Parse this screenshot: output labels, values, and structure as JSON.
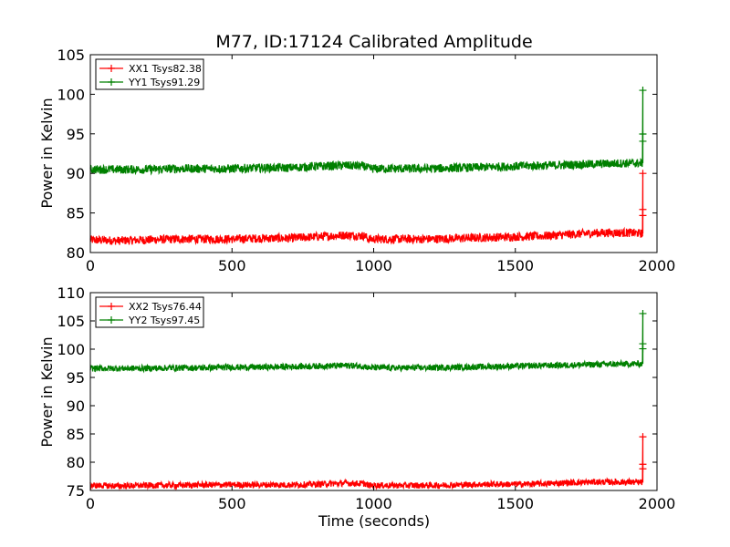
{
  "chart_data": [
    {
      "type": "line",
      "title": "M77, ID:17124 Calibrated Amplitude",
      "xlabel": "",
      "ylabel": "Power in Kelvin",
      "xlim": [
        0,
        2000
      ],
      "ylim": [
        80,
        105
      ],
      "xticks": [
        "0",
        "500",
        "1000",
        "1500",
        "2000"
      ],
      "yticks": [
        "80",
        "85",
        "90",
        "95",
        "100",
        "105"
      ],
      "legend_position": "top-left",
      "grid": false,
      "series": [
        {
          "name": "XX1 Tsys82.38",
          "color": "#ff0000",
          "x": [
            0,
            100,
            200,
            300,
            400,
            500,
            600,
            700,
            800,
            900,
            970,
            980,
            1100,
            1200,
            1300,
            1400,
            1500,
            1600,
            1700,
            1800,
            1900,
            1950
          ],
          "y": [
            81.6,
            81.5,
            81.6,
            81.7,
            81.7,
            81.7,
            81.8,
            81.8,
            82.0,
            82.2,
            82.1,
            81.7,
            81.7,
            81.7,
            81.8,
            81.9,
            82.0,
            82.1,
            82.3,
            82.5,
            82.5,
            82.4
          ],
          "spike": {
            "x": 1950,
            "y_min": 82.4,
            "y_max": 90.0
          }
        },
        {
          "name": "YY1 Tsys91.29",
          "color": "#008000",
          "x": [
            0,
            100,
            200,
            300,
            400,
            500,
            600,
            700,
            800,
            900,
            970,
            980,
            1100,
            1200,
            1300,
            1400,
            1500,
            1600,
            1700,
            1800,
            1900,
            1950
          ],
          "y": [
            90.5,
            90.5,
            90.5,
            90.6,
            90.6,
            90.6,
            90.7,
            90.7,
            90.9,
            91.0,
            90.9,
            90.6,
            90.6,
            90.6,
            90.7,
            90.8,
            90.9,
            91.0,
            91.1,
            91.2,
            91.3,
            91.3
          ],
          "spike": {
            "x": 1950,
            "y_min": 91.3,
            "y_max": 100.5
          }
        }
      ]
    },
    {
      "type": "line",
      "title": "",
      "xlabel": "Time (seconds)",
      "ylabel": "Power in Kelvin",
      "xlim": [
        0,
        2000
      ],
      "ylim": [
        75,
        110
      ],
      "xticks": [
        "0",
        "500",
        "1000",
        "1500",
        "2000"
      ],
      "yticks": [
        "75",
        "80",
        "85",
        "90",
        "95",
        "100",
        "105",
        "110"
      ],
      "legend_position": "top-left",
      "grid": false,
      "series": [
        {
          "name": "XX2 Tsys76.44",
          "color": "#ff0000",
          "x": [
            0,
            100,
            200,
            300,
            400,
            500,
            600,
            700,
            800,
            900,
            970,
            980,
            1100,
            1200,
            1300,
            1400,
            1500,
            1600,
            1700,
            1800,
            1900,
            1950
          ],
          "y": [
            75.9,
            75.8,
            75.9,
            75.9,
            76.0,
            76.0,
            76.0,
            76.0,
            76.1,
            76.3,
            76.2,
            75.9,
            75.9,
            75.9,
            76.0,
            76.1,
            76.1,
            76.2,
            76.4,
            76.5,
            76.5,
            76.4
          ],
          "spike": {
            "x": 1950,
            "y_min": 76.4,
            "y_max": 84.5
          }
        },
        {
          "name": "YY2 Tsys97.45",
          "color": "#008000",
          "x": [
            0,
            100,
            200,
            300,
            400,
            500,
            600,
            700,
            800,
            900,
            970,
            980,
            1100,
            1200,
            1300,
            1400,
            1500,
            1600,
            1700,
            1800,
            1900,
            1950
          ],
          "y": [
            96.6,
            96.6,
            96.6,
            96.7,
            96.7,
            96.8,
            96.8,
            96.9,
            97.0,
            97.1,
            97.0,
            96.7,
            96.7,
            96.7,
            96.8,
            96.9,
            97.0,
            97.1,
            97.2,
            97.3,
            97.4,
            97.4
          ],
          "spike": {
            "x": 1950,
            "y_min": 97.4,
            "y_max": 106.3
          }
        }
      ]
    }
  ]
}
